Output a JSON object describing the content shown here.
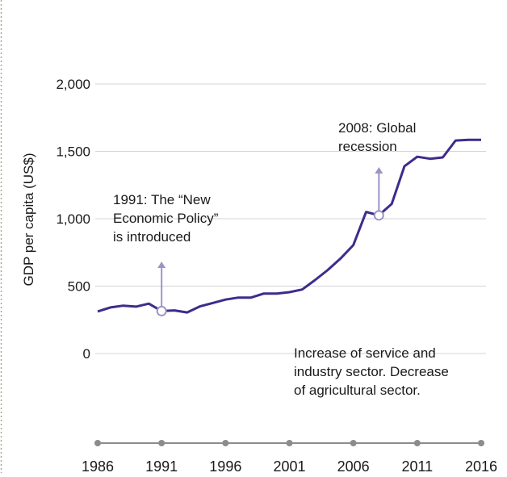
{
  "chart_data": {
    "type": "line",
    "ylabel": "GDP per capita (US$)",
    "xlabel": "",
    "title": "",
    "ylim": [
      0,
      2000
    ],
    "xlim": [
      1986,
      2016
    ],
    "y_ticks": [
      "0",
      "500",
      "1,000",
      "1,500",
      "2,000"
    ],
    "y_tick_values": [
      0,
      500,
      1000,
      1500,
      2000
    ],
    "x_ticks": [
      "1986",
      "1991",
      "1996",
      "2001",
      "2006",
      "2011",
      "2016"
    ],
    "x_tick_values": [
      1986,
      1991,
      1996,
      2001,
      2006,
      2011,
      2016
    ],
    "grid": true,
    "series": [
      {
        "x": [
          1986,
          1987,
          1988,
          1989,
          1990,
          1991,
          1992,
          1993,
          1994,
          1995,
          1996,
          1997,
          1998,
          1999,
          2000,
          2001,
          2002,
          2003,
          2004,
          2005,
          2006,
          2007,
          2008,
          2009,
          2010,
          2011,
          2012,
          2013,
          2014,
          2015,
          2016
        ],
        "values": [
          312,
          342,
          355,
          348,
          370,
          315,
          320,
          305,
          350,
          375,
          400,
          415,
          415,
          445,
          445,
          455,
          475,
          545,
          620,
          705,
          805,
          1050,
          1025,
          1110,
          1390,
          1460,
          1445,
          1455,
          1580,
          1585,
          1585
        ]
      }
    ],
    "color": "#3f2b8c",
    "annotations": [
      {
        "text_lines": [
          "1991: The “New",
          "Economic Policy”",
          "is introduced"
        ],
        "x": 1991,
        "y": 315
      },
      {
        "text_lines": [
          "2008: Global",
          "recession"
        ],
        "x": 2008,
        "y": 1025
      },
      {
        "text_lines": [
          "Increase of service and",
          "industry sector. Decrease",
          "of agricultural sector."
        ]
      }
    ]
  }
}
